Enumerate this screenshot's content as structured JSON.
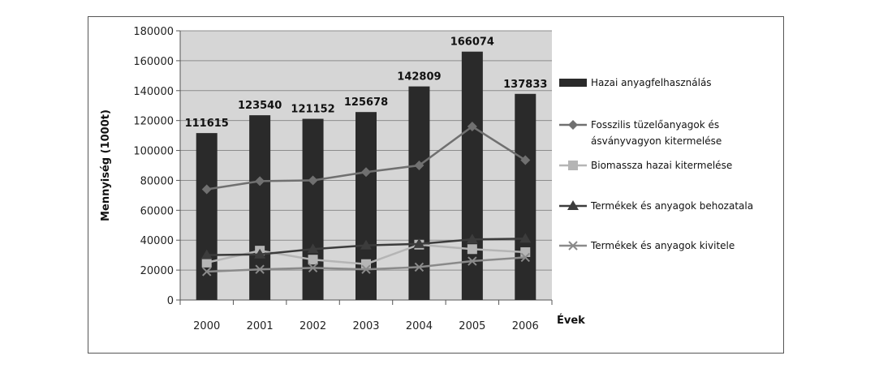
{
  "chart_data": {
    "type": "bar",
    "title": "",
    "ylabel": "Mennyiség (1000t)",
    "xlabel": "Évek",
    "ylim": [
      0,
      180000
    ],
    "yticks": [
      0,
      20000,
      40000,
      60000,
      80000,
      100000,
      120000,
      140000,
      160000,
      180000
    ],
    "categories": [
      "2000",
      "2001",
      "2002",
      "2003",
      "2004",
      "2005",
      "2006"
    ],
    "grid": true,
    "legend_position": "right",
    "series": [
      {
        "name": "Hazai anyagfelhasználás",
        "type": "bar",
        "color": "#2a2a2a",
        "values": [
          111615,
          123540,
          121152,
          125678,
          142809,
          166074,
          137833
        ],
        "labels": [
          "111615",
          "123540",
          "121152",
          "125678",
          "142809",
          "166074",
          "137833"
        ]
      },
      {
        "name": "Fosszilis tüzelőanyagok és ásványvagyon kitermelése",
        "type": "line",
        "marker": "diamond",
        "color": "#707070",
        "values": [
          74000,
          79500,
          80000,
          85500,
          90000,
          116000,
          93500
        ]
      },
      {
        "name": "Biomassza hazai kitermelése",
        "type": "line",
        "marker": "square",
        "color": "#b5b5b5",
        "values": [
          25000,
          33000,
          27000,
          24000,
          37000,
          34000,
          32000
        ]
      },
      {
        "name": "Termékek és anyagok behozatala",
        "type": "line",
        "marker": "triangle",
        "color": "#3c3c3c",
        "values": [
          30000,
          30500,
          34000,
          36500,
          37500,
          40500,
          41000
        ]
      },
      {
        "name": "Termékek és anyagok kivitele",
        "type": "line",
        "marker": "x",
        "color": "#8a8a8a",
        "values": [
          19000,
          20500,
          21500,
          20500,
          22000,
          26000,
          28500
        ]
      }
    ],
    "legend_lines": [
      [
        "Hazai anyagfelhasználás"
      ],
      [
        "Fosszilis tüzelőanyagok és",
        "ásványvagyon kitermelése"
      ],
      [
        "Biomassza hazai kitermelése"
      ],
      [
        "Termékek és anyagok behozatala"
      ],
      [
        "Termékek és anyagok kivitele"
      ]
    ]
  }
}
